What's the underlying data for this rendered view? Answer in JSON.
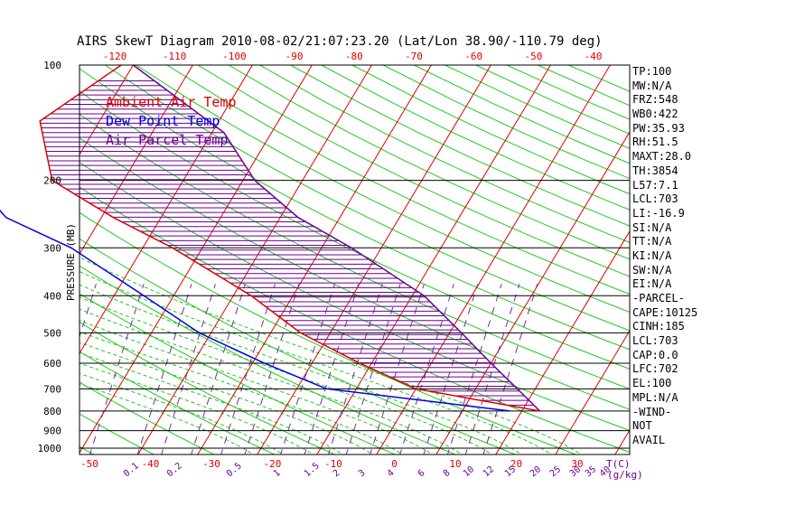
{
  "title": "AIRS SkewT Diagram 2010-08-02/21:07:23.20 (Lat/Lon 38.90/-110.79 deg)",
  "ylabel": "PRESSURE (MB)",
  "legend": [
    {
      "label": "Ambient Air Temp",
      "color": "#e00000"
    },
    {
      "label": "Dew Point Temp",
      "color": "#0000e0"
    },
    {
      "label": "Air Parcel Temp",
      "color": "#6a0090"
    }
  ],
  "top_ticks": [
    "-120",
    "-110",
    "-100",
    "-90",
    "-80",
    "-70",
    "-60",
    "-50",
    "-40"
  ],
  "bottom_ticks": [
    "-50",
    "-40",
    "-30",
    "-20",
    "-10",
    "0",
    "10",
    "20",
    "30"
  ],
  "bottom_unit": "T(C)",
  "mixing_ticks": [
    "0.1",
    "0.2",
    "0.5",
    "1",
    "1.5",
    "2",
    "3",
    "4",
    "6",
    "8",
    "10",
    "12",
    "15",
    "20",
    "25",
    "30",
    "35",
    "40"
  ],
  "mixing_unit": "(g/kg)",
  "pressure_ticks": [
    "100",
    "200",
    "300",
    "400",
    "500",
    "600",
    "700",
    "800",
    "900",
    "1000"
  ],
  "indices": [
    "TP:100",
    "MW:N/A",
    "FRZ:548",
    "WB0:422",
    "PW:35.93",
    "RH:51.5",
    "MAXT:28.0",
    "TH:3854",
    "L57:7.1",
    "LCL:703",
    "LI:-16.9",
    "SI:N/A",
    "TT:N/A",
    "KI:N/A",
    "SW:N/A",
    "EI:N/A",
    "-PARCEL-",
    "CAPE:10125",
    "CINH:185",
    "LCL:703",
    "CAP:0.0",
    "LFC:702",
    "EL:100",
    "MPL:N/A",
    "-WIND-",
    "NOT",
    "AVAIL"
  ],
  "chart_data": {
    "type": "line",
    "title": "AIRS SkewT Diagram 2010-08-02/21:07:23.20 (Lat/Lon 38.90/-110.79 deg)",
    "ylabel": "PRESSURE (MB)",
    "y_scale": "log",
    "ylim": [
      1050,
      100
    ],
    "series": [
      {
        "name": "Ambient Air Temp",
        "color": "#e00000",
        "points": [
          [
            100,
            -72
          ],
          [
            140,
            -80
          ],
          [
            200,
            -72
          ],
          [
            250,
            -58
          ],
          [
            300,
            -45
          ],
          [
            400,
            -27
          ],
          [
            500,
            -15
          ],
          [
            600,
            -2
          ],
          [
            700,
            10
          ],
          [
            800,
            33
          ]
        ]
      },
      {
        "name": "Dew Point Temp",
        "color": "#0000e0",
        "points": [
          [
            100,
            -95
          ],
          [
            150,
            -92
          ],
          [
            200,
            -85
          ],
          [
            250,
            -76
          ],
          [
            300,
            -62
          ],
          [
            400,
            -45
          ],
          [
            500,
            -32
          ],
          [
            600,
            -18
          ],
          [
            700,
            -5
          ],
          [
            800,
            28
          ]
        ]
      },
      {
        "name": "Air Parcel Temp",
        "color": "#6a0090",
        "points": [
          [
            100,
            -70
          ],
          [
            150,
            -48
          ],
          [
            200,
            -38
          ],
          [
            250,
            -27
          ],
          [
            300,
            -15
          ],
          [
            400,
            2
          ],
          [
            500,
            12
          ],
          [
            600,
            20
          ],
          [
            700,
            27
          ],
          [
            800,
            33
          ]
        ]
      }
    ]
  }
}
